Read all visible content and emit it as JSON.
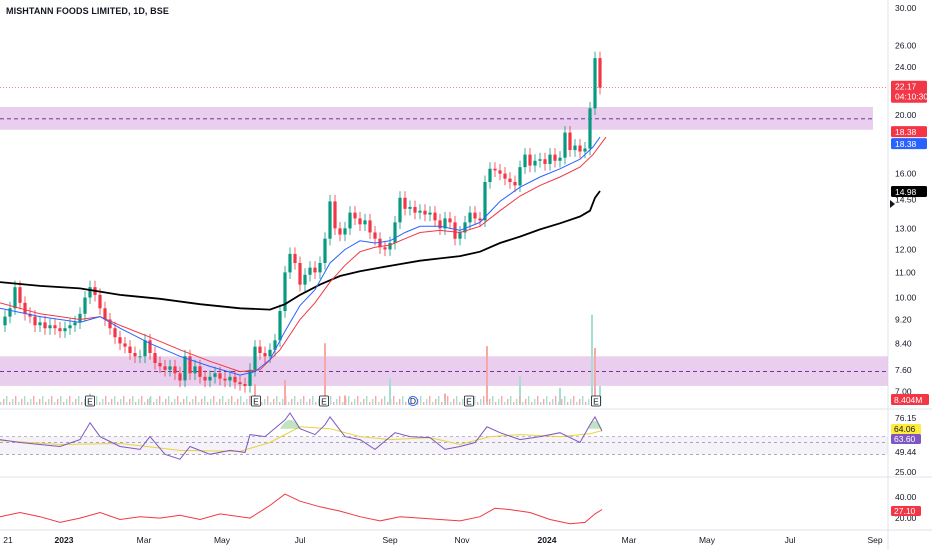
{
  "chart_data": {
    "type": "candlestick",
    "title": "MISHTANN FOODS LIMITED, 1D, BSE",
    "symbol": "MISHTANN FOODS LIMITED",
    "interval": "1D",
    "exchange": "BSE",
    "x_ticks": [
      "21",
      "2023",
      "Mar",
      "May",
      "Jul",
      "Sep",
      "Nov",
      "2024",
      "Mar",
      "May",
      "Jul",
      "Sep"
    ],
    "price_axis": {
      "ticks": [
        "30.00",
        "26.00",
        "24.00",
        "20.00",
        "16.00",
        "14.50",
        "13.00",
        "12.00",
        "11.00",
        "10.00",
        "9.20",
        "8.40",
        "7.60",
        "7.00"
      ],
      "scale": "log",
      "range": [
        6.6,
        30.0
      ]
    },
    "price_tags": [
      {
        "label": "22.17",
        "sub": "04:10:30",
        "bg": "#f23645",
        "fg": "#ffffff"
      },
      {
        "label": "18.38",
        "bg": "#f23645",
        "fg": "#ffffff"
      },
      {
        "label": "18.38",
        "bg": "#2962ff",
        "fg": "#ffffff"
      },
      {
        "label": "14.98",
        "bg": "#000000",
        "fg": "#ffffff"
      }
    ],
    "zones": [
      {
        "from": 18.9,
        "to": 20.6,
        "mid": 19.7,
        "color": "#e1bee7"
      },
      {
        "from": 7.15,
        "to": 8.0,
        "mid": 7.55,
        "color": "#e1bee7"
      }
    ],
    "last_price_line": 22.17,
    "moving_averages": [
      {
        "role": "ema-fast",
        "color": "#2962ff"
      },
      {
        "role": "ema-slow",
        "color": "#f23645"
      },
      {
        "role": "ma-long",
        "color": "#000000"
      }
    ],
    "close": [
      [
        0,
        9.0
      ],
      [
        5,
        9.3
      ],
      [
        10,
        9.6
      ],
      [
        15,
        10.4
      ],
      [
        20,
        9.8
      ],
      [
        25,
        9.4
      ],
      [
        30,
        9.3
      ],
      [
        35,
        9.0
      ],
      [
        40,
        9.1
      ],
      [
        45,
        8.9
      ],
      [
        50,
        9.0
      ],
      [
        55,
        8.9
      ],
      [
        60,
        8.8
      ],
      [
        65,
        8.9
      ],
      [
        70,
        9.0
      ],
      [
        75,
        9.1
      ],
      [
        80,
        9.4
      ],
      [
        85,
        10.0
      ],
      [
        90,
        10.4
      ],
      [
        95,
        10.1
      ],
      [
        100,
        9.6
      ],
      [
        105,
        9.2
      ],
      [
        110,
        8.9
      ],
      [
        115,
        8.6
      ],
      [
        120,
        8.4
      ],
      [
        125,
        8.3
      ],
      [
        130,
        8.1
      ],
      [
        135,
        8.0
      ],
      [
        140,
        8.0
      ],
      [
        145,
        8.5
      ],
      [
        150,
        8.1
      ],
      [
        155,
        7.8
      ],
      [
        160,
        7.7
      ],
      [
        165,
        7.6
      ],
      [
        170,
        7.7
      ],
      [
        175,
        7.5
      ],
      [
        180,
        7.3
      ],
      [
        185,
        8.0
      ],
      [
        190,
        7.5
      ],
      [
        195,
        7.7
      ],
      [
        200,
        7.4
      ],
      [
        205,
        7.3
      ],
      [
        210,
        7.4
      ],
      [
        215,
        7.5
      ],
      [
        220,
        7.35
      ],
      [
        225,
        7.3
      ],
      [
        230,
        7.4
      ],
      [
        235,
        7.25
      ],
      [
        240,
        7.2
      ],
      [
        245,
        7.15
      ],
      [
        250,
        7.6
      ],
      [
        255,
        8.3
      ],
      [
        260,
        8.1
      ],
      [
        265,
        8.0
      ],
      [
        270,
        8.2
      ],
      [
        275,
        8.5
      ],
      [
        280,
        9.5
      ],
      [
        285,
        11.0
      ],
      [
        290,
        11.8
      ],
      [
        295,
        11.4
      ],
      [
        300,
        10.5
      ],
      [
        305,
        10.9
      ],
      [
        310,
        11.2
      ],
      [
        315,
        11.0
      ],
      [
        320,
        11.4
      ],
      [
        325,
        12.5
      ],
      [
        330,
        14.4
      ],
      [
        335,
        13.0
      ],
      [
        340,
        12.7
      ],
      [
        345,
        13.0
      ],
      [
        350,
        13.8
      ],
      [
        355,
        13.5
      ],
      [
        360,
        13.2
      ],
      [
        365,
        13.4
      ],
      [
        370,
        12.8
      ],
      [
        375,
        12.5
      ],
      [
        380,
        12.1
      ],
      [
        385,
        12.0
      ],
      [
        390,
        12.3
      ],
      [
        395,
        13.3
      ],
      [
        400,
        14.6
      ],
      [
        405,
        14.0
      ],
      [
        410,
        14.1
      ],
      [
        415,
        13.8
      ],
      [
        420,
        13.9
      ],
      [
        425,
        13.7
      ],
      [
        430,
        13.8
      ],
      [
        435,
        13.4
      ],
      [
        440,
        13.0
      ],
      [
        445,
        13.5
      ],
      [
        450,
        13.3
      ],
      [
        455,
        12.5
      ],
      [
        460,
        12.8
      ],
      [
        465,
        13.3
      ],
      [
        470,
        13.8
      ],
      [
        475,
        13.5
      ],
      [
        480,
        13.4
      ],
      [
        485,
        15.5
      ],
      [
        490,
        16.3
      ],
      [
        495,
        16.2
      ],
      [
        500,
        16.0
      ],
      [
        505,
        15.7
      ],
      [
        510,
        15.5
      ],
      [
        515,
        15.3
      ],
      [
        520,
        16.4
      ],
      [
        525,
        17.2
      ],
      [
        530,
        16.5
      ],
      [
        535,
        16.8
      ],
      [
        540,
        16.9
      ],
      [
        545,
        16.6
      ],
      [
        550,
        17.2
      ],
      [
        555,
        16.8
      ],
      [
        560,
        17.0
      ],
      [
        565,
        18.7
      ],
      [
        570,
        17.5
      ],
      [
        575,
        17.8
      ],
      [
        580,
        17.4
      ],
      [
        585,
        17.6
      ],
      [
        590,
        20.5
      ],
      [
        595,
        24.8
      ],
      [
        600,
        22.17
      ]
    ],
    "ema_fast": [
      [
        0,
        9.6
      ],
      [
        40,
        9.3
      ],
      [
        80,
        9.1
      ],
      [
        100,
        9.3
      ],
      [
        120,
        8.9
      ],
      [
        150,
        8.4
      ],
      [
        180,
        8.0
      ],
      [
        210,
        7.7
      ],
      [
        240,
        7.45
      ],
      [
        255,
        7.55
      ],
      [
        270,
        7.9
      ],
      [
        285,
        8.8
      ],
      [
        300,
        9.7
      ],
      [
        315,
        10.3
      ],
      [
        330,
        11.4
      ],
      [
        345,
        12.0
      ],
      [
        360,
        12.4
      ],
      [
        375,
        12.3
      ],
      [
        390,
        12.4
      ],
      [
        405,
        12.8
      ],
      [
        420,
        13.1
      ],
      [
        440,
        13.1
      ],
      [
        460,
        12.9
      ],
      [
        480,
        13.3
      ],
      [
        500,
        14.4
      ],
      [
        520,
        15.2
      ],
      [
        540,
        15.8
      ],
      [
        560,
        16.3
      ],
      [
        580,
        16.9
      ],
      [
        593,
        17.7
      ],
      [
        600,
        18.38
      ]
    ],
    "ema_slow": [
      [
        0,
        9.8
      ],
      [
        40,
        9.4
      ],
      [
        80,
        9.2
      ],
      [
        100,
        9.3
      ],
      [
        120,
        9.0
      ],
      [
        150,
        8.6
      ],
      [
        180,
        8.2
      ],
      [
        210,
        7.85
      ],
      [
        240,
        7.55
      ],
      [
        260,
        7.6
      ],
      [
        280,
        8.2
      ],
      [
        300,
        9.2
      ],
      [
        315,
        9.8
      ],
      [
        330,
        10.6
      ],
      [
        345,
        11.3
      ],
      [
        360,
        11.9
      ],
      [
        375,
        12.1
      ],
      [
        390,
        12.2
      ],
      [
        405,
        12.5
      ],
      [
        420,
        12.8
      ],
      [
        440,
        12.9
      ],
      [
        460,
        12.8
      ],
      [
        480,
        13.1
      ],
      [
        500,
        13.9
      ],
      [
        520,
        14.7
      ],
      [
        540,
        15.3
      ],
      [
        560,
        15.8
      ],
      [
        580,
        16.4
      ],
      [
        593,
        17.2
      ],
      [
        606,
        18.38
      ]
    ],
    "ma_long": [
      [
        0,
        10.6
      ],
      [
        40,
        10.45
      ],
      [
        80,
        10.35
      ],
      [
        120,
        10.1
      ],
      [
        160,
        9.95
      ],
      [
        200,
        9.75
      ],
      [
        240,
        9.6
      ],
      [
        270,
        9.55
      ],
      [
        285,
        9.75
      ],
      [
        300,
        10.1
      ],
      [
        320,
        10.5
      ],
      [
        340,
        10.85
      ],
      [
        360,
        11.05
      ],
      [
        380,
        11.2
      ],
      [
        400,
        11.35
      ],
      [
        420,
        11.5
      ],
      [
        440,
        11.6
      ],
      [
        460,
        11.7
      ],
      [
        480,
        11.9
      ],
      [
        500,
        12.3
      ],
      [
        520,
        12.6
      ],
      [
        540,
        12.95
      ],
      [
        560,
        13.25
      ],
      [
        580,
        13.6
      ],
      [
        590,
        13.9
      ],
      [
        595,
        14.6
      ],
      [
        600,
        14.98
      ]
    ],
    "volume": {
      "label": "8.404M",
      "bars": [
        [
          90,
          12
        ],
        [
          150,
          8
        ],
        [
          250,
          10
        ],
        [
          255,
          22
        ],
        [
          285,
          26
        ],
        [
          325,
          65
        ],
        [
          345,
          10
        ],
        [
          390,
          28
        ],
        [
          410,
          9
        ],
        [
          445,
          12
        ],
        [
          487,
          62
        ],
        [
          520,
          30
        ],
        [
          560,
          18
        ],
        [
          592,
          95
        ],
        [
          595,
          60
        ],
        [
          600,
          20
        ]
      ]
    },
    "earnings_markers": [
      {
        "x": 90,
        "label": "E"
      },
      {
        "x": 256,
        "label": "E"
      },
      {
        "x": 324,
        "label": "E"
      },
      {
        "x": 413,
        "label": "D"
      },
      {
        "x": 469,
        "label": "E"
      },
      {
        "x": 596,
        "label": "E"
      }
    ],
    "rsi": {
      "ticks": [
        "76.15",
        "49.44",
        "25.00"
      ],
      "levels": {
        "upper": 58.0,
        "mid": 52.0,
        "lower": 40.0
      },
      "value_tags": [
        {
          "label": "64.06",
          "bg": "#ffeb3b",
          "fg": "#131722"
        },
        {
          "label": "63.60",
          "bg": "#7e57c2",
          "fg": "#ffffff"
        }
      ],
      "range": [
        20,
        82
      ],
      "rsi_line": [
        [
          0,
          55
        ],
        [
          20,
          52
        ],
        [
          40,
          50
        ],
        [
          60,
          48
        ],
        [
          80,
          55
        ],
        [
          90,
          72
        ],
        [
          100,
          58
        ],
        [
          120,
          48
        ],
        [
          140,
          45
        ],
        [
          150,
          58
        ],
        [
          165,
          40
        ],
        [
          180,
          35
        ],
        [
          190,
          48
        ],
        [
          210,
          40
        ],
        [
          230,
          44
        ],
        [
          245,
          42
        ],
        [
          250,
          60
        ],
        [
          265,
          58
        ],
        [
          285,
          75
        ],
        [
          290,
          82
        ],
        [
          300,
          66
        ],
        [
          315,
          60
        ],
        [
          325,
          70
        ],
        [
          330,
          78
        ],
        [
          345,
          58
        ],
        [
          360,
          55
        ],
        [
          375,
          45
        ],
        [
          395,
          62
        ],
        [
          410,
          58
        ],
        [
          430,
          57
        ],
        [
          445,
          45
        ],
        [
          460,
          48
        ],
        [
          475,
          52
        ],
        [
          487,
          68
        ],
        [
          500,
          62
        ],
        [
          520,
          55
        ],
        [
          540,
          58
        ],
        [
          560,
          62
        ],
        [
          580,
          52
        ],
        [
          590,
          70
        ],
        [
          595,
          78
        ],
        [
          602,
          63.6
        ]
      ],
      "signal_line": [
        [
          0,
          54
        ],
        [
          60,
          50
        ],
        [
          120,
          51
        ],
        [
          180,
          44
        ],
        [
          240,
          43
        ],
        [
          270,
          52
        ],
        [
          300,
          68
        ],
        [
          330,
          66
        ],
        [
          360,
          58
        ],
        [
          390,
          55
        ],
        [
          430,
          57
        ],
        [
          460,
          50
        ],
        [
          490,
          58
        ],
        [
          520,
          60
        ],
        [
          560,
          58
        ],
        [
          590,
          61
        ],
        [
          602,
          64.06
        ]
      ]
    },
    "lower_indicator": {
      "ticks": [
        "40.00",
        "20.00"
      ],
      "value_tag": {
        "label": "27.10",
        "bg": "#f23645",
        "fg": "#ffffff"
      },
      "range": [
        14,
        48
      ],
      "line": [
        [
          0,
          22
        ],
        [
          20,
          25
        ],
        [
          40,
          22
        ],
        [
          60,
          18
        ],
        [
          80,
          21
        ],
        [
          100,
          25
        ],
        [
          120,
          20
        ],
        [
          140,
          22
        ],
        [
          160,
          21
        ],
        [
          180,
          23
        ],
        [
          200,
          20
        ],
        [
          220,
          24
        ],
        [
          250,
          21
        ],
        [
          270,
          30
        ],
        [
          285,
          38
        ],
        [
          300,
          33
        ],
        [
          320,
          29
        ],
        [
          340,
          26
        ],
        [
          360,
          22
        ],
        [
          380,
          19
        ],
        [
          400,
          22
        ],
        [
          420,
          21
        ],
        [
          440,
          20
        ],
        [
          460,
          19
        ],
        [
          480,
          22
        ],
        [
          495,
          28
        ],
        [
          510,
          27
        ],
        [
          530,
          25
        ],
        [
          550,
          20
        ],
        [
          570,
          17
        ],
        [
          585,
          18
        ],
        [
          595,
          24
        ],
        [
          602,
          27.1
        ]
      ]
    }
  }
}
